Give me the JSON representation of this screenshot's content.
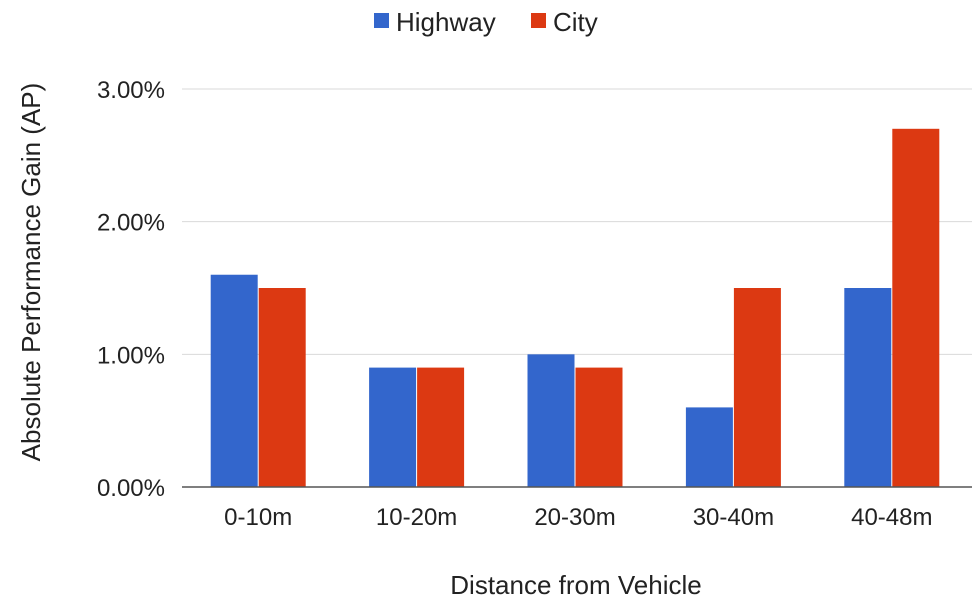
{
  "chart_data": {
    "type": "bar",
    "title": "",
    "xlabel": "Distance from Vehicle",
    "ylabel": "Absolute Performance Gain (AP)",
    "categories": [
      "0-10m",
      "10-20m",
      "20-30m",
      "30-40m",
      "40-48m"
    ],
    "series": [
      {
        "name": "Highway",
        "color": "#3366cc",
        "values": [
          1.6,
          0.9,
          1.0,
          0.6,
          1.5
        ]
      },
      {
        "name": "City",
        "color": "#dc3912",
        "values": [
          1.5,
          0.9,
          0.9,
          1.5,
          2.7
        ]
      }
    ],
    "ylim": [
      0,
      3
    ],
    "yticks": [
      0,
      1,
      2,
      3
    ],
    "ytick_labels": [
      "0.00%",
      "1.00%",
      "2.00%",
      "3.00%"
    ],
    "grid": true,
    "legend_position": "top-center"
  }
}
